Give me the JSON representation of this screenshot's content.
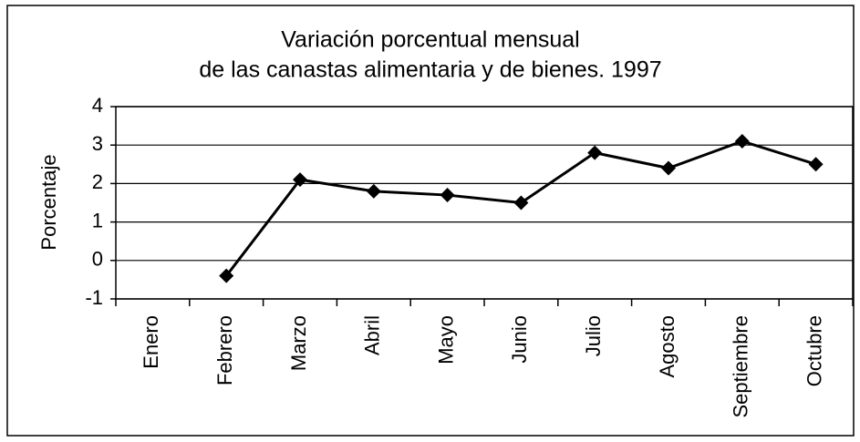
{
  "chart_data": {
    "type": "line",
    "title": [
      "Variación porcentual mensual",
      "de las canastas alimentaria y de bienes. 1997"
    ],
    "y_label": "Porcentaje",
    "categories": [
      "Enero",
      "Febrero",
      "Marzo",
      "Abril",
      "Mayo",
      "Junio",
      "Julio",
      "Agosto",
      "Septiembre",
      "Octubre"
    ],
    "values": [
      null,
      -0.4,
      2.1,
      1.8,
      1.7,
      1.5,
      2.8,
      2.4,
      3.1,
      2.5
    ],
    "color": "#000000",
    "ylim": [
      -1,
      4
    ],
    "yticks": [
      -1,
      0,
      1,
      2,
      3,
      4
    ],
    "grid": true
  }
}
